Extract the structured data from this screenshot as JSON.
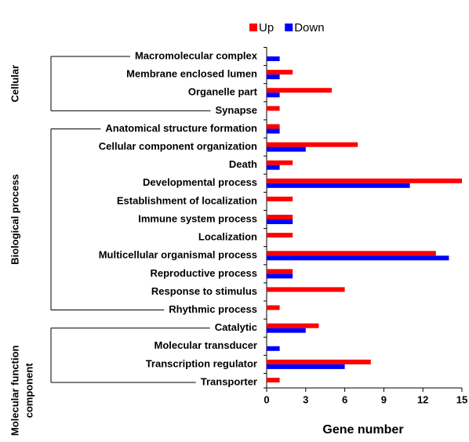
{
  "chart_data": {
    "type": "bar",
    "orientation": "horizontal",
    "xlabel": "Gene number",
    "groups": [
      {
        "name": [
          "Cellular"
        ],
        "categories": [
          "Macromolecular complex",
          "Membrane enclosed lumen",
          "Organelle part",
          "Synapse"
        ]
      },
      {
        "name": [
          "Biological process"
        ],
        "categories": [
          "Anatomical structure formation",
          "Cellular component organization",
          "Death",
          "Developmental process",
          "Establishment of localization",
          "Immune system process",
          "Localization",
          "Multicellular organismal process",
          "Reproductive process",
          "Response to stimulus",
          "Rhythmic process"
        ]
      },
      {
        "name": [
          "Molecular function",
          "component"
        ],
        "categories": [
          "Catalytic",
          "Molecular transducer",
          "Transcription regulator",
          "Transporter"
        ]
      }
    ],
    "series": [
      {
        "name": "Up",
        "color": "#ff0000",
        "values": [
          0,
          2,
          5,
          1,
          1,
          7,
          2,
          15,
          2,
          2,
          2,
          13,
          2,
          6,
          1,
          4,
          0,
          8,
          1
        ]
      },
      {
        "name": "Down",
        "color": "#0000ff",
        "values": [
          1,
          1,
          1,
          0,
          1,
          3,
          1,
          11,
          0,
          2,
          0,
          14,
          2,
          0,
          0,
          3,
          1,
          6,
          0
        ]
      }
    ],
    "xlim": [
      0,
      15
    ],
    "xticks": [
      0,
      3,
      6,
      9,
      12,
      15
    ],
    "legend": "top"
  }
}
